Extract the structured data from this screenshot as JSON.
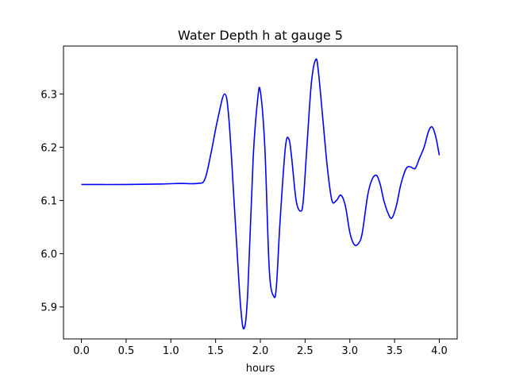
{
  "chart_data": {
    "type": "line",
    "title": "Water Depth h at gauge 5",
    "xlabel": "hours",
    "ylabel": "",
    "xlim": [
      -0.2,
      4.2
    ],
    "ylim": [
      5.84,
      6.39
    ],
    "x_ticks": [
      0.0,
      0.5,
      1.0,
      1.5,
      2.0,
      2.5,
      3.0,
      3.5,
      4.0
    ],
    "x_tick_labels": [
      "0.0",
      "0.5",
      "1.0",
      "1.5",
      "2.0",
      "2.5",
      "3.0",
      "3.5",
      "4.0"
    ],
    "y_ticks": [
      5.9,
      6.0,
      6.1,
      6.2,
      6.3
    ],
    "y_tick_labels": [
      "5.9",
      "6.0",
      "6.1",
      "6.2",
      "6.3"
    ],
    "grid": false,
    "series": [
      {
        "color": "#0000ff",
        "x": [
          0.0,
          0.5,
          0.9,
          1.1,
          1.3,
          1.38,
          1.45,
          1.52,
          1.6,
          1.65,
          1.72,
          1.78,
          1.82,
          1.86,
          1.92,
          1.97,
          2.0,
          2.05,
          2.1,
          2.15,
          2.18,
          2.22,
          2.28,
          2.32,
          2.35,
          2.4,
          2.45,
          2.48,
          2.52,
          2.57,
          2.62,
          2.65,
          2.7,
          2.75,
          2.8,
          2.85,
          2.9,
          2.95,
          3.0,
          3.05,
          3.1,
          3.14,
          3.2,
          3.25,
          3.3,
          3.34,
          3.38,
          3.43,
          3.47,
          3.52,
          3.57,
          3.63,
          3.68,
          3.73,
          3.78,
          3.83,
          3.88,
          3.92,
          3.96,
          4.0
        ],
        "y": [
          6.13,
          6.13,
          6.131,
          6.132,
          6.132,
          6.14,
          6.19,
          6.25,
          6.3,
          6.25,
          6.06,
          5.9,
          5.86,
          5.93,
          6.18,
          6.29,
          6.305,
          6.2,
          5.97,
          5.92,
          5.94,
          6.06,
          6.2,
          6.215,
          6.18,
          6.1,
          6.08,
          6.1,
          6.2,
          6.32,
          6.365,
          6.34,
          6.25,
          6.16,
          6.1,
          6.1,
          6.11,
          6.09,
          6.04,
          6.017,
          6.02,
          6.04,
          6.11,
          6.14,
          6.147,
          6.13,
          6.1,
          6.075,
          6.067,
          6.09,
          6.13,
          6.16,
          6.163,
          6.16,
          6.18,
          6.2,
          6.23,
          6.238,
          6.22,
          6.185
        ]
      }
    ]
  }
}
